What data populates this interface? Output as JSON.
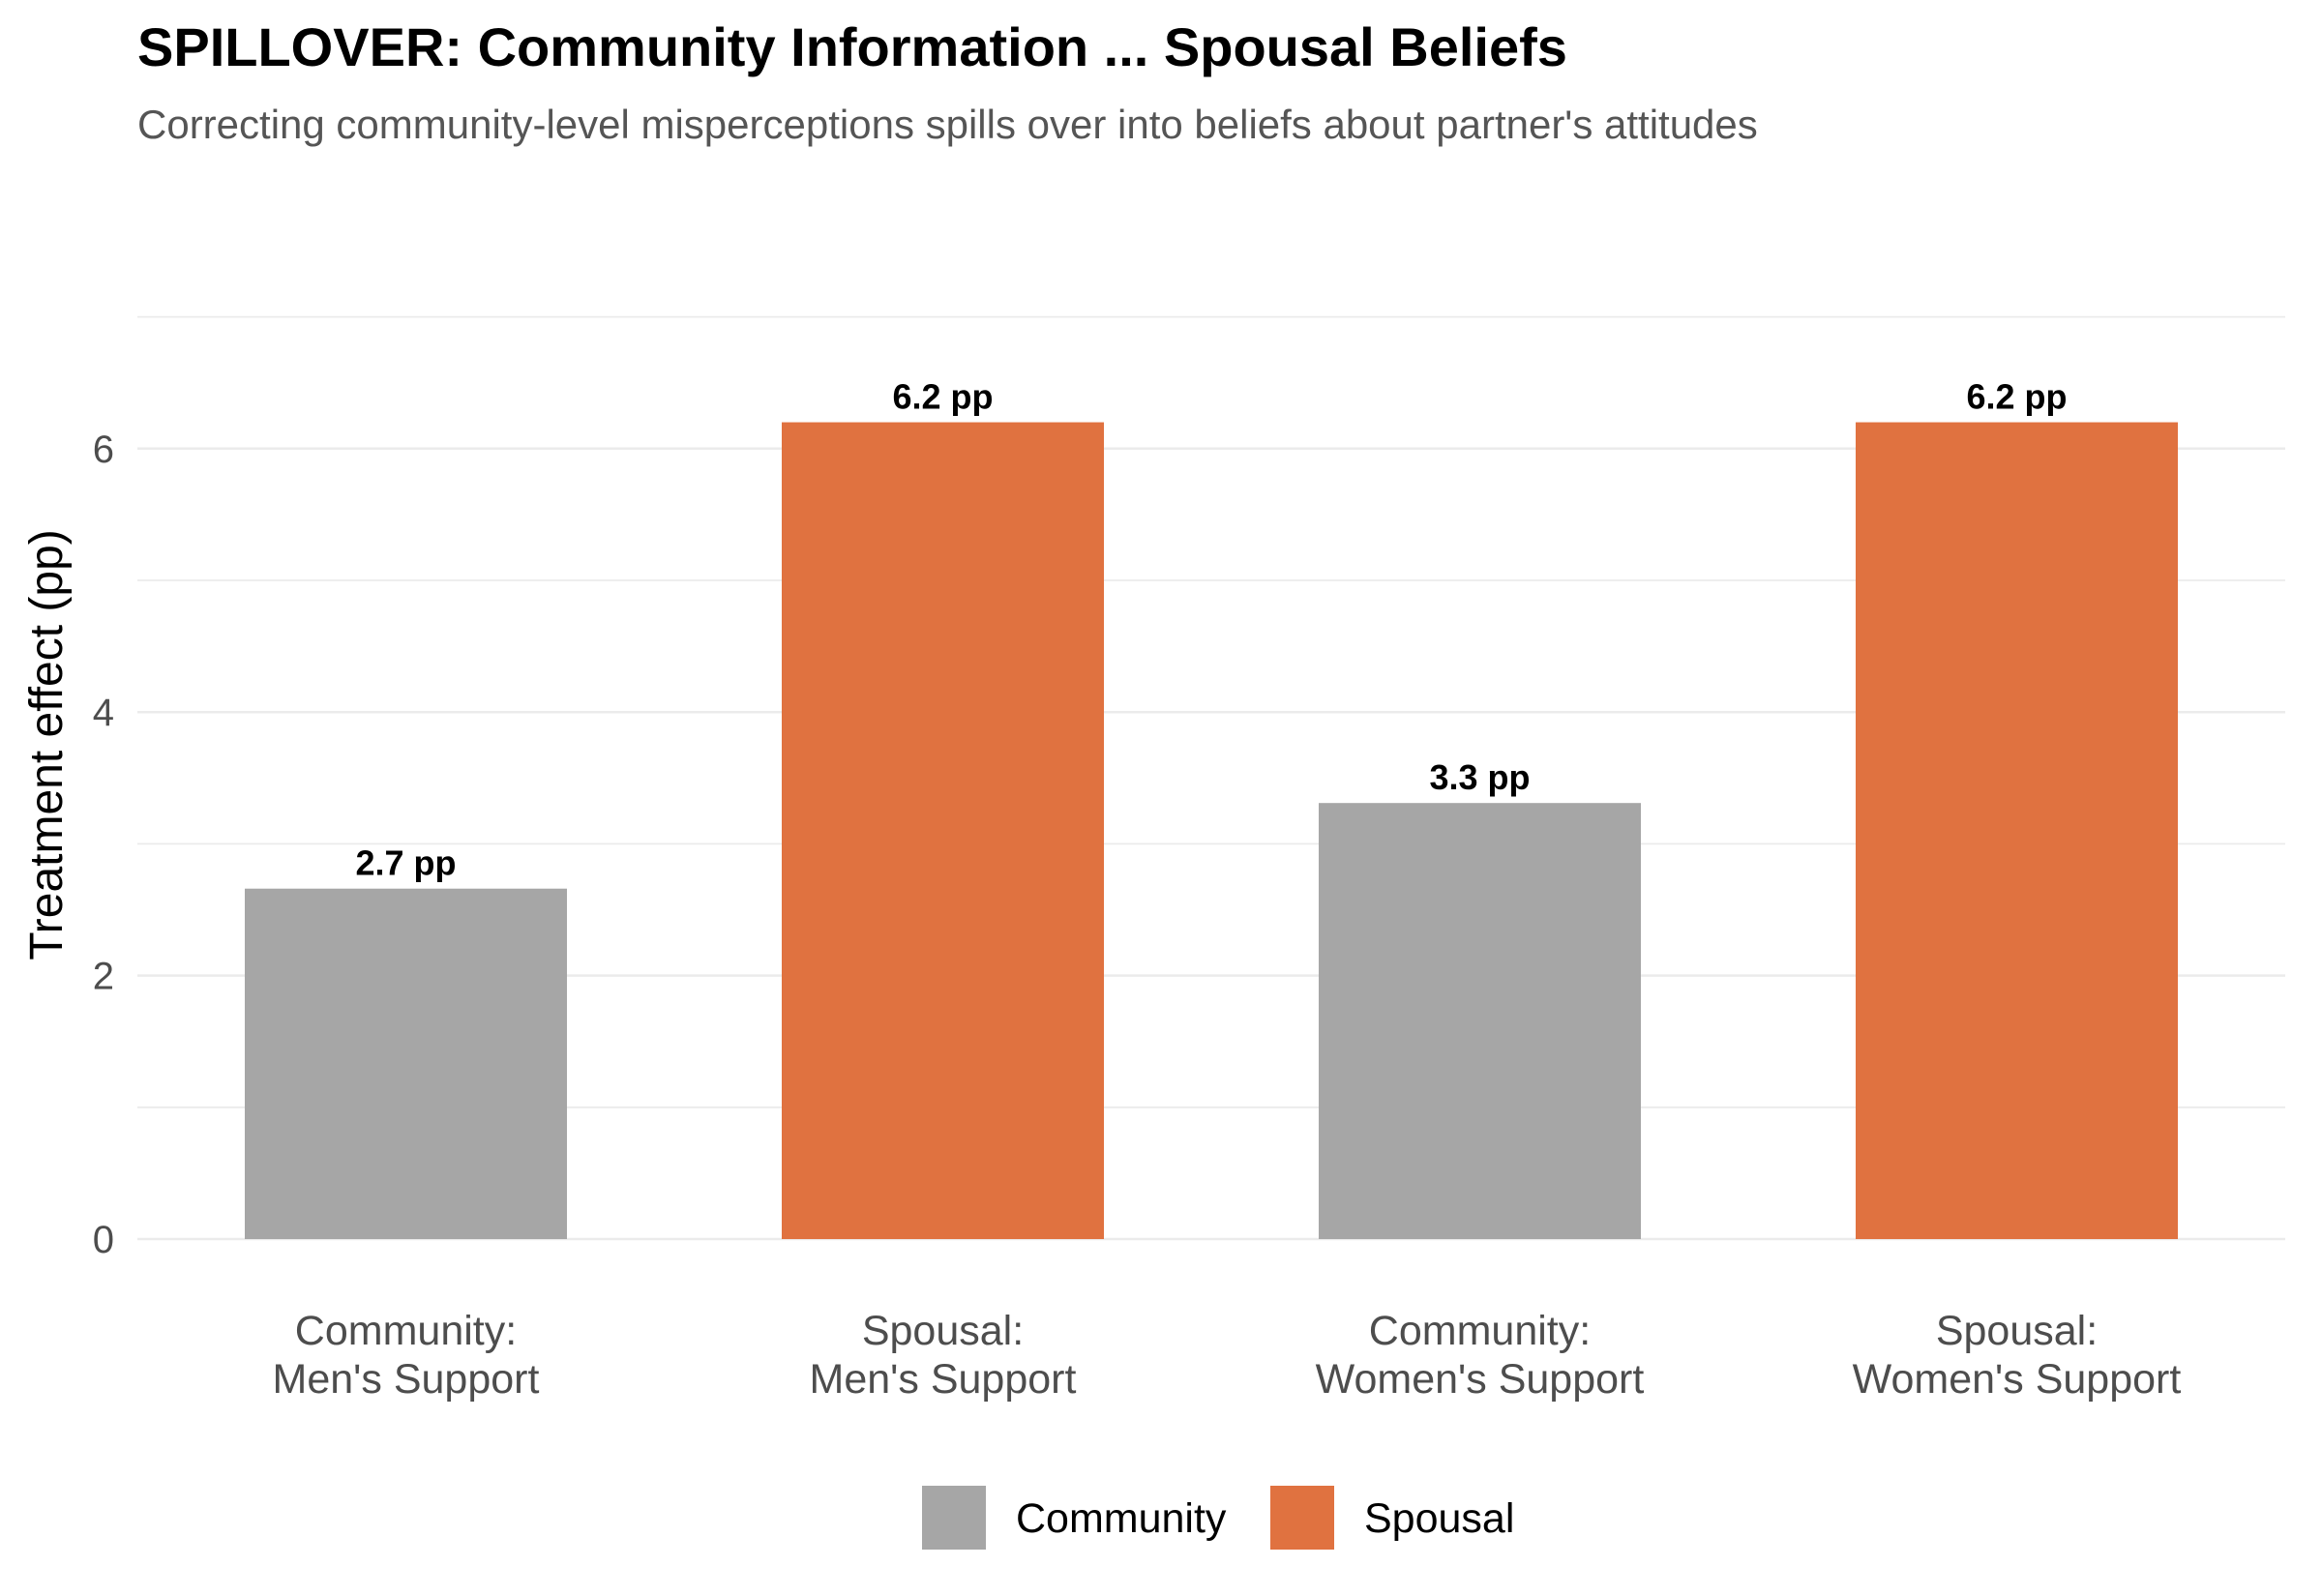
{
  "chart_data": {
    "type": "bar",
    "title": "SPILLOVER: Community Information ... Spousal Beliefs",
    "subtitle": "Correcting community-level misperceptions spills over into beliefs about partner's attitudes",
    "xlabel": "",
    "ylabel": "Treatment effect (pp)",
    "ylim": [
      0,
      7
    ],
    "yticks": [
      0,
      2,
      4,
      6
    ],
    "grid": true,
    "legend_position": "bottom",
    "categories": [
      [
        "Community:",
        "Men's Support"
      ],
      [
        "Spousal:",
        "Men's Support"
      ],
      [
        "Community:",
        "Women's Support"
      ],
      [
        "Spousal:",
        "Women's Support"
      ]
    ],
    "values": [
      2.66,
      6.2,
      3.31,
      6.2
    ],
    "value_labels": [
      "2.7 pp",
      "6.2 pp",
      "3.3 pp",
      "6.2 pp"
    ],
    "groups": [
      "Community",
      "Spousal",
      "Community",
      "Spousal"
    ],
    "legend": [
      {
        "name": "Community",
        "color": "#a6a6a6"
      },
      {
        "name": "Spousal",
        "color": "#e07240"
      }
    ]
  }
}
